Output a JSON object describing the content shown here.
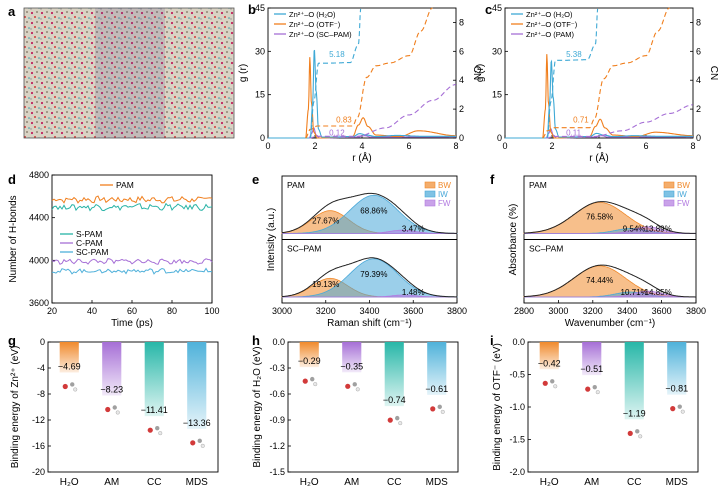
{
  "colors": {
    "h2o": "#3fa9d5",
    "otf": "#f07f1e",
    "pam": "#a66fd6",
    "bw": "#f08a2c",
    "iw": "#49a8d8",
    "fw": "#b27be0",
    "spam": "#27b3a6",
    "cpam": "#a66fd6",
    "scpam": "#4fb0da",
    "cc_bar": "#28b7a8",
    "mds_bar": "#4fb2da"
  },
  "panels": {
    "a": {
      "label": "a"
    },
    "b": {
      "label": "b"
    },
    "c": {
      "label": "c"
    },
    "d": {
      "label": "d"
    },
    "e": {
      "label": "e"
    },
    "f": {
      "label": "f"
    },
    "g": {
      "label": "g"
    },
    "h": {
      "label": "h"
    },
    "i": {
      "label": "i"
    }
  },
  "chart_data": [
    {
      "id": "b",
      "type": "line",
      "xlabel": "r (Å)",
      "ylabel": "g (r)",
      "y2label": "CN",
      "xlim": [
        0,
        8
      ],
      "ylim": [
        0,
        45
      ],
      "y2lim": [
        0,
        9
      ],
      "xticks": [
        "0",
        "2",
        "4",
        "6",
        "8"
      ],
      "yticks": [
        "0",
        "15",
        "30",
        "45"
      ],
      "y2ticks": [
        "0",
        "2",
        "4",
        "6",
        "8"
      ],
      "legend": [
        "Zn²⁺–O (H₂O)",
        "Zn²⁺–O (OTF⁻)",
        "Zn²⁺–O (SC–PAM)"
      ],
      "annotations": [
        "5.18",
        "0.83",
        "0.12"
      ],
      "gr": {
        "h2o": {
          "x": [
            0,
            1.8,
            1.9,
            1.97,
            2.05,
            2.15,
            2.3,
            2.6,
            3.6,
            3.9,
            4.2,
            4.6,
            5.5,
            6.5,
            8
          ],
          "y": [
            0,
            0,
            12,
            31,
            16,
            3,
            0.3,
            0.3,
            0.5,
            1.5,
            1.0,
            0.5,
            0.9,
            0.6,
            0.6
          ]
        },
        "otf": {
          "x": [
            0,
            1.6,
            1.72,
            1.78,
            1.85,
            1.95,
            2.1,
            3.6,
            3.85,
            4.05,
            4.25,
            4.6,
            5.6,
            6.4,
            8
          ],
          "y": [
            0,
            0,
            10,
            28,
            12,
            2,
            0,
            0.5,
            4.5,
            7.0,
            4.0,
            1.0,
            0.5,
            2.5,
            0.8
          ]
        },
        "pam": {
          "x": [
            0,
            1.75,
            1.85,
            1.95,
            2.05,
            2.2,
            3.8,
            4.1,
            4.4,
            8
          ],
          "y": [
            0,
            0,
            1.5,
            3.5,
            1.0,
            0,
            0.3,
            0.8,
            0.3,
            0.4
          ]
        }
      },
      "cn": {
        "h2o": {
          "x": [
            1.8,
            1.95,
            2.15,
            2.5,
            3.5,
            3.85,
            3.95
          ],
          "y": [
            0,
            2.5,
            5.18,
            5.18,
            5.22,
            6.5,
            9
          ]
        },
        "otf": {
          "x": [
            1.6,
            1.8,
            2.1,
            3.6,
            3.8,
            4.2,
            4.6,
            5.2,
            6.0,
            6.5,
            7.0
          ],
          "y": [
            0,
            0.6,
            0.83,
            0.83,
            1.4,
            4.2,
            5.0,
            5.2,
            5.7,
            7.4,
            9
          ]
        },
        "pam": {
          "x": [
            1.75,
            2.1,
            3.8,
            5.0,
            6.0,
            7.0,
            8.0
          ],
          "y": [
            0,
            0.12,
            0.12,
            0.7,
            1.6,
            2.6,
            3.7
          ]
        }
      }
    },
    {
      "id": "c",
      "type": "line",
      "xlabel": "r (Å)",
      "ylabel": "g (r)",
      "y2label": "CN",
      "xlim": [
        0,
        8
      ],
      "ylim": [
        0,
        45
      ],
      "y2lim": [
        0,
        9
      ],
      "xticks": [
        "0",
        "2",
        "4",
        "6",
        "8"
      ],
      "yticks": [
        "0",
        "15",
        "30",
        "45"
      ],
      "y2ticks": [
        "0",
        "2",
        "4",
        "6",
        "8"
      ],
      "legend": [
        "Zn²⁺–O (H₂O)",
        "Zn²⁺–O (OTF⁻)",
        "Zn²⁺–O (PAM)"
      ],
      "annotations": [
        "5.38",
        "0.71",
        "0.11"
      ],
      "gr": {
        "h2o": {
          "x": [
            0,
            1.8,
            1.9,
            1.97,
            2.05,
            2.15,
            2.3,
            2.6,
            3.6,
            3.9,
            4.2,
            4.6,
            5.5,
            6.5,
            8
          ],
          "y": [
            0,
            0,
            12,
            27,
            14,
            3,
            0.3,
            0.3,
            0.5,
            1.6,
            1.0,
            0.5,
            0.8,
            0.6,
            0.6
          ]
        },
        "otf": {
          "x": [
            0,
            1.6,
            1.72,
            1.78,
            1.85,
            1.95,
            2.1,
            3.6,
            3.85,
            4.05,
            4.25,
            4.6,
            5.6,
            6.4,
            8
          ],
          "y": [
            0,
            0,
            10,
            29,
            12,
            2,
            0,
            0.5,
            4.0,
            6.5,
            3.5,
            1.0,
            0.5,
            2.0,
            0.8
          ]
        },
        "pam": {
          "x": [
            0,
            1.75,
            1.85,
            1.95,
            2.05,
            2.2,
            3.8,
            4.1,
            4.4,
            8
          ],
          "y": [
            0,
            0,
            1.5,
            3.2,
            1.0,
            0,
            0.3,
            0.8,
            0.3,
            0.4
          ]
        }
      },
      "cn": {
        "h2o": {
          "x": [
            1.8,
            1.95,
            2.15,
            2.5,
            3.5,
            3.85,
            3.95
          ],
          "y": [
            0,
            2.5,
            5.38,
            5.38,
            5.42,
            6.5,
            9
          ]
        },
        "otf": {
          "x": [
            1.6,
            1.8,
            2.1,
            3.6,
            3.8,
            4.2,
            4.6,
            5.2,
            6.0,
            6.5,
            7.0
          ],
          "y": [
            0,
            0.5,
            0.71,
            0.71,
            1.3,
            4.1,
            5.0,
            5.2,
            5.7,
            7.4,
            9
          ]
        },
        "pam": {
          "x": [
            1.75,
            2.1,
            3.8,
            5.0,
            6.0,
            7.0,
            8.0
          ],
          "y": [
            0,
            0.11,
            0.11,
            0.5,
            1.1,
            1.7,
            2.3
          ]
        }
      }
    },
    {
      "id": "d",
      "type": "line",
      "xlabel": "Time (ps)",
      "ylabel": "Number of H-bonds",
      "xlim": [
        20,
        100
      ],
      "ylim": [
        3600,
        4800
      ],
      "xticks": [
        "20",
        "40",
        "60",
        "80",
        "100"
      ],
      "yticks": [
        "3600",
        "4000",
        "4400",
        "4800"
      ],
      "series": [
        {
          "name": "PAM",
          "mean": 4570,
          "amp": 25
        },
        {
          "name": "S-PAM",
          "mean": 4500,
          "amp": 25
        },
        {
          "name": "C-PAM",
          "mean": 3990,
          "amp": 20
        },
        {
          "name": "SC-PAM",
          "mean": 3900,
          "amp": 20
        }
      ]
    },
    {
      "id": "e",
      "type": "area",
      "xlabel": "Raman shift (cm⁻¹)",
      "ylabel": "Intensity (a.u.)",
      "xlim": [
        3000,
        3800
      ],
      "xticks": [
        "3000",
        "3200",
        "3400",
        "3600",
        "3800"
      ],
      "legend": [
        "BW",
        "IW",
        "FW"
      ],
      "subplots": [
        {
          "label": "PAM",
          "components": [
            {
              "name": "BW",
              "center": 3220,
              "width": 85,
              "height": 0.55,
              "percent": "27.67%"
            },
            {
              "name": "IW",
              "center": 3420,
              "width": 110,
              "height": 0.92,
              "percent": "68.86%"
            },
            {
              "name": "FW",
              "center": 3550,
              "width": 60,
              "height": 0.08,
              "percent": "3.47%"
            }
          ]
        },
        {
          "label": "SC–PAM",
          "components": [
            {
              "name": "BW",
              "center": 3220,
              "width": 80,
              "height": 0.45,
              "percent": "19.13%"
            },
            {
              "name": "IW",
              "center": 3420,
              "width": 110,
              "height": 0.92,
              "percent": "79.39%"
            },
            {
              "name": "FW",
              "center": 3560,
              "width": 55,
              "height": 0.05,
              "percent": "1.48%"
            }
          ]
        }
      ]
    },
    {
      "id": "f",
      "type": "area",
      "xlabel": "Wavenumber (cm⁻¹)",
      "ylabel": "Absorbance (%)",
      "xlim": [
        2800,
        3800
      ],
      "xticks": [
        "2800",
        "3000",
        "3200",
        "3400",
        "3600",
        "3800"
      ],
      "legend": [
        "BW",
        "IW",
        "FW"
      ],
      "subplots": [
        {
          "label": "PAM",
          "components": [
            {
              "name": "BW",
              "center": 3240,
              "width": 150,
              "height": 0.75,
              "percent": "76.58%"
            },
            {
              "name": "IW",
              "center": 3420,
              "width": 90,
              "height": 0.12,
              "percent": "9.54%"
            },
            {
              "name": "FW",
              "center": 3520,
              "width": 80,
              "height": 0.16,
              "percent": "13.89%"
            }
          ]
        },
        {
          "label": "SC–PAM",
          "components": [
            {
              "name": "BW",
              "center": 3240,
              "width": 150,
              "height": 0.75,
              "percent": "74.44%"
            },
            {
              "name": "IW",
              "center": 3420,
              "width": 90,
              "height": 0.12,
              "percent": "10.71%"
            },
            {
              "name": "FW",
              "center": 3520,
              "width": 80,
              "height": 0.14,
              "percent": "14.85%"
            }
          ]
        }
      ]
    },
    {
      "id": "g",
      "type": "bar",
      "ylabel": "Binding energy of Zn²⁺ (eV)",
      "ylim": [
        -20,
        0
      ],
      "yticks": [
        "0",
        "-4",
        "-8",
        "-12",
        "-16",
        "-20"
      ],
      "categories": [
        "H₂O",
        "AM",
        "CC",
        "MDS"
      ],
      "values": [
        -4.69,
        -8.23,
        -11.41,
        -13.36
      ],
      "labels": [
        "−4.69",
        "−8.23",
        "−11.41",
        "−13.36"
      ]
    },
    {
      "id": "h",
      "type": "bar",
      "ylabel": "Binding energy of H₂O (eV)",
      "ylim": [
        -1.5,
        0
      ],
      "yticks": [
        "0.0",
        "-0.3",
        "-0.6",
        "-0.9",
        "-1.2",
        "-1.5"
      ],
      "categories": [
        "H₂O",
        "AM",
        "CC",
        "MDS"
      ],
      "values": [
        -0.29,
        -0.35,
        -0.74,
        -0.61
      ],
      "labels": [
        "−0.29",
        "−0.35",
        "−0.74",
        "−0.61"
      ]
    },
    {
      "id": "i",
      "type": "bar",
      "ylabel": "Binding energy of OTF⁻ (eV)",
      "ylim": [
        -2.0,
        0
      ],
      "yticks": [
        "0.0",
        "-0.5",
        "-1.0",
        "-1.5",
        "-2.0"
      ],
      "categories": [
        "H₂O",
        "AM",
        "CC",
        "MDS"
      ],
      "values": [
        -0.42,
        -0.51,
        -1.19,
        -0.81
      ],
      "labels": [
        "−0.42",
        "−0.51",
        "−1.19",
        "−0.81"
      ]
    }
  ]
}
